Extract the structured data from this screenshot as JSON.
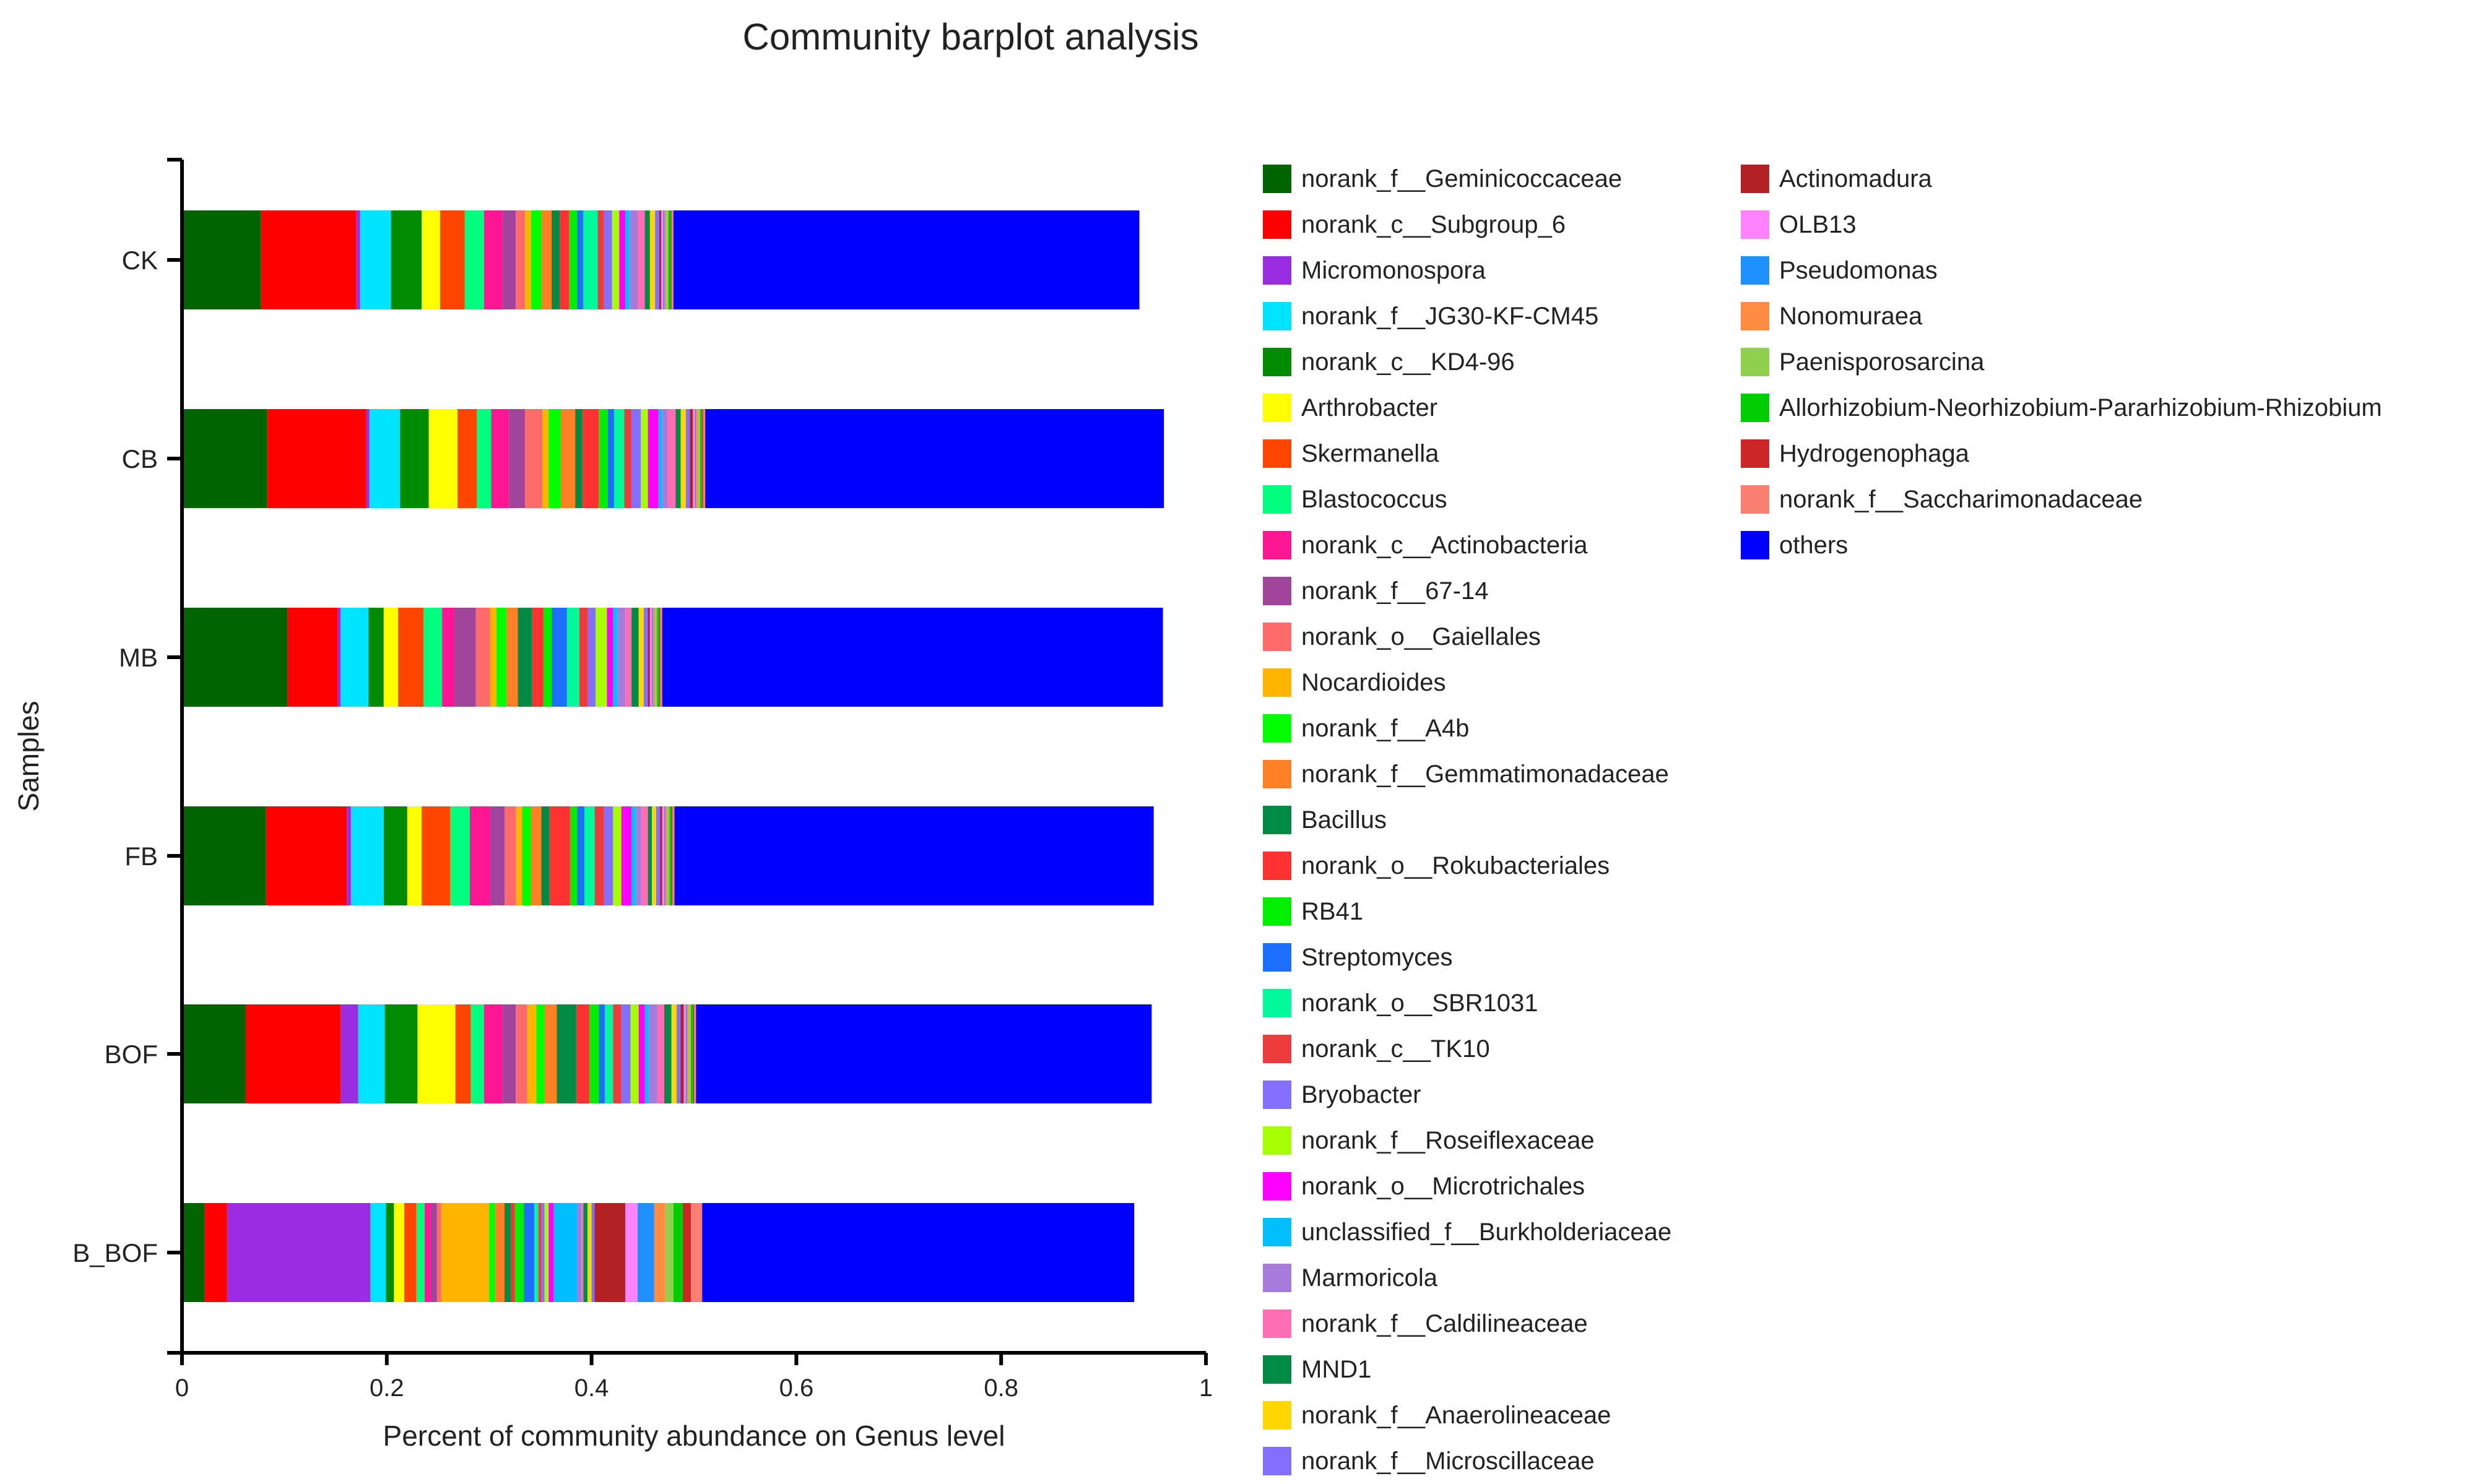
{
  "chart_data": {
    "type": "bar",
    "orientation": "horizontal",
    "stacked": true,
    "title": "Community barplot analysis",
    "xlabel": "Percent of community abundance on Genus level",
    "ylabel": "Samples",
    "xlim": [
      0,
      1
    ],
    "xticks": [
      0,
      0.2,
      0.4,
      0.6,
      0.8,
      1
    ],
    "xtick_labels": [
      "0",
      "0.2",
      "0.4",
      "0.6",
      "0.8",
      "1"
    ],
    "categories": [
      "CK",
      "CB",
      "MB",
      "FB",
      "BOF",
      "B_BOF"
    ],
    "legend_position": "right",
    "series": [
      {
        "name": "norank_f__Geminicoccaceae",
        "color": "#006400",
        "values": [
          0.077,
          0.083,
          0.103,
          0.082,
          0.062,
          0.022
        ]
      },
      {
        "name": "norank_c__Subgroup_6",
        "color": "#ff0000",
        "values": [
          0.093,
          0.097,
          0.049,
          0.079,
          0.093,
          0.022
        ]
      },
      {
        "name": "Micromonospora",
        "color": "#9b2de0",
        "values": [
          0.004,
          0.003,
          0.003,
          0.004,
          0.017,
          0.14
        ]
      },
      {
        "name": "norank_f__JG30-KF-CM45",
        "color": "#00e5ff",
        "values": [
          0.03,
          0.03,
          0.027,
          0.032,
          0.026,
          0.015
        ]
      },
      {
        "name": "norank_c__KD4-96",
        "color": "#008b00",
        "values": [
          0.03,
          0.028,
          0.015,
          0.023,
          0.032,
          0.008
        ]
      },
      {
        "name": "Arthrobacter",
        "color": "#ffff00",
        "values": [
          0.018,
          0.028,
          0.014,
          0.014,
          0.037,
          0.01
        ]
      },
      {
        "name": "Skermanella",
        "color": "#ff4500",
        "values": [
          0.024,
          0.019,
          0.025,
          0.028,
          0.015,
          0.012
        ]
      },
      {
        "name": "Blastococcus",
        "color": "#00ff7f",
        "values": [
          0.019,
          0.014,
          0.018,
          0.019,
          0.013,
          0.008
        ]
      },
      {
        "name": "norank_c__Actinobacteria",
        "color": "#ff1493",
        "values": [
          0.018,
          0.017,
          0.012,
          0.02,
          0.018,
          0.006
        ]
      },
      {
        "name": "norank_f__67-14",
        "color": "#a0459a",
        "values": [
          0.013,
          0.016,
          0.021,
          0.014,
          0.013,
          0.006
        ]
      },
      {
        "name": "norank_o__Gaiellales",
        "color": "#ff6a6a",
        "values": [
          0.009,
          0.017,
          0.014,
          0.011,
          0.011,
          0.004
        ]
      },
      {
        "name": "Nocardioides",
        "color": "#ffb400",
        "values": [
          0.006,
          0.006,
          0.006,
          0.006,
          0.009,
          0.047
        ]
      },
      {
        "name": "norank_f__A4b",
        "color": "#00ff00",
        "values": [
          0.01,
          0.012,
          0.01,
          0.009,
          0.008,
          0.006
        ]
      },
      {
        "name": "norank_f__Gemmatimonadaceae",
        "color": "#ff7f24",
        "values": [
          0.01,
          0.014,
          0.011,
          0.01,
          0.012,
          0.009
        ]
      },
      {
        "name": "Bacillus",
        "color": "#008b45",
        "values": [
          0.008,
          0.007,
          0.014,
          0.008,
          0.019,
          0.006
        ]
      },
      {
        "name": "norank_o__Rokubacteriales",
        "color": "#ff3030",
        "values": [
          0.009,
          0.016,
          0.011,
          0.02,
          0.013,
          0.004
        ]
      },
      {
        "name": "RB41",
        "color": "#00ee00",
        "values": [
          0.008,
          0.009,
          0.008,
          0.007,
          0.009,
          0.009
        ]
      },
      {
        "name": "Streptomyces",
        "color": "#1e6fff",
        "values": [
          0.006,
          0.006,
          0.015,
          0.007,
          0.006,
          0.01
        ]
      },
      {
        "name": "norank_o__SBR1031",
        "color": "#00fa9a",
        "values": [
          0.014,
          0.01,
          0.012,
          0.01,
          0.008,
          0.004
        ]
      },
      {
        "name": "norank_c__TK10",
        "color": "#ee3b3b",
        "values": [
          0.006,
          0.007,
          0.008,
          0.009,
          0.008,
          0.003
        ]
      },
      {
        "name": "Bryobacter",
        "color": "#8470ff",
        "values": [
          0.008,
          0.009,
          0.008,
          0.009,
          0.009,
          0.003
        ]
      },
      {
        "name": "norank_f__Roseiflexaceae",
        "color": "#a6ff00",
        "values": [
          0.007,
          0.007,
          0.011,
          0.008,
          0.008,
          0.004
        ]
      },
      {
        "name": "norank_o__Microtrichales",
        "color": "#ff00ff",
        "values": [
          0.006,
          0.01,
          0.006,
          0.01,
          0.006,
          0.005
        ]
      },
      {
        "name": "unclassified_f__Burkholderiaceae",
        "color": "#00bfff",
        "values": [
          0.004,
          0.004,
          0.004,
          0.004,
          0.004,
          0.023
        ]
      },
      {
        "name": "Marmoricola",
        "color": "#a67bdb",
        "values": [
          0.008,
          0.005,
          0.008,
          0.005,
          0.008,
          0.004
        ]
      },
      {
        "name": "norank_f__Caldilineaceae",
        "color": "#ff6eb4",
        "values": [
          0.007,
          0.008,
          0.006,
          0.007,
          0.007,
          0.002
        ]
      },
      {
        "name": "MND1",
        "color": "#008b45",
        "values": [
          0.005,
          0.005,
          0.007,
          0.004,
          0.007,
          0.004
        ]
      },
      {
        "name": "norank_f__Anaerolineaceae",
        "color": "#ffd700",
        "values": [
          0.005,
          0.005,
          0.005,
          0.004,
          0.005,
          0.004
        ]
      },
      {
        "name": "norank_f__Microscillaceae",
        "color": "#836fff",
        "values": [
          0.004,
          0.004,
          0.004,
          0.004,
          0.004,
          0.003
        ]
      },
      {
        "name": "Actinomadura",
        "color": "#b22222",
        "values": [
          0.002,
          0.003,
          0.002,
          0.002,
          0.003,
          0.03
        ]
      },
      {
        "name": "OLB13",
        "color": "#ff82ff",
        "values": [
          0.002,
          0.002,
          0.002,
          0.002,
          0.002,
          0.012
        ]
      },
      {
        "name": "Pseudomonas",
        "color": "#1e90ff",
        "values": [
          0.001,
          0.001,
          0.001,
          0.001,
          0.001,
          0.016
        ]
      },
      {
        "name": "Nonomuraea",
        "color": "#ff8c40",
        "values": [
          0.002,
          0.002,
          0.002,
          0.002,
          0.002,
          0.011
        ]
      },
      {
        "name": "Paenisporosarcina",
        "color": "#8fd14f",
        "values": [
          0.002,
          0.002,
          0.002,
          0.002,
          0.002,
          0.008
        ]
      },
      {
        "name": "Allorhizobium-Neorhizobium-Pararhizobium-Rhizobium",
        "color": "#00cd00",
        "values": [
          0.002,
          0.002,
          0.002,
          0.002,
          0.002,
          0.009
        ]
      },
      {
        "name": "Hydrogenophaga",
        "color": "#cd2626",
        "values": [
          0.001,
          0.001,
          0.001,
          0.001,
          0.001,
          0.008
        ]
      },
      {
        "name": "norank_f__Saccharimonadaceae",
        "color": "#fa8072",
        "values": [
          0.002,
          0.002,
          0.002,
          0.002,
          0.002,
          0.011
        ]
      },
      {
        "name": "others",
        "color": "#0000ff",
        "values": [
          0.455,
          0.448,
          0.489,
          0.468,
          0.445,
          0.422
        ]
      }
    ]
  }
}
